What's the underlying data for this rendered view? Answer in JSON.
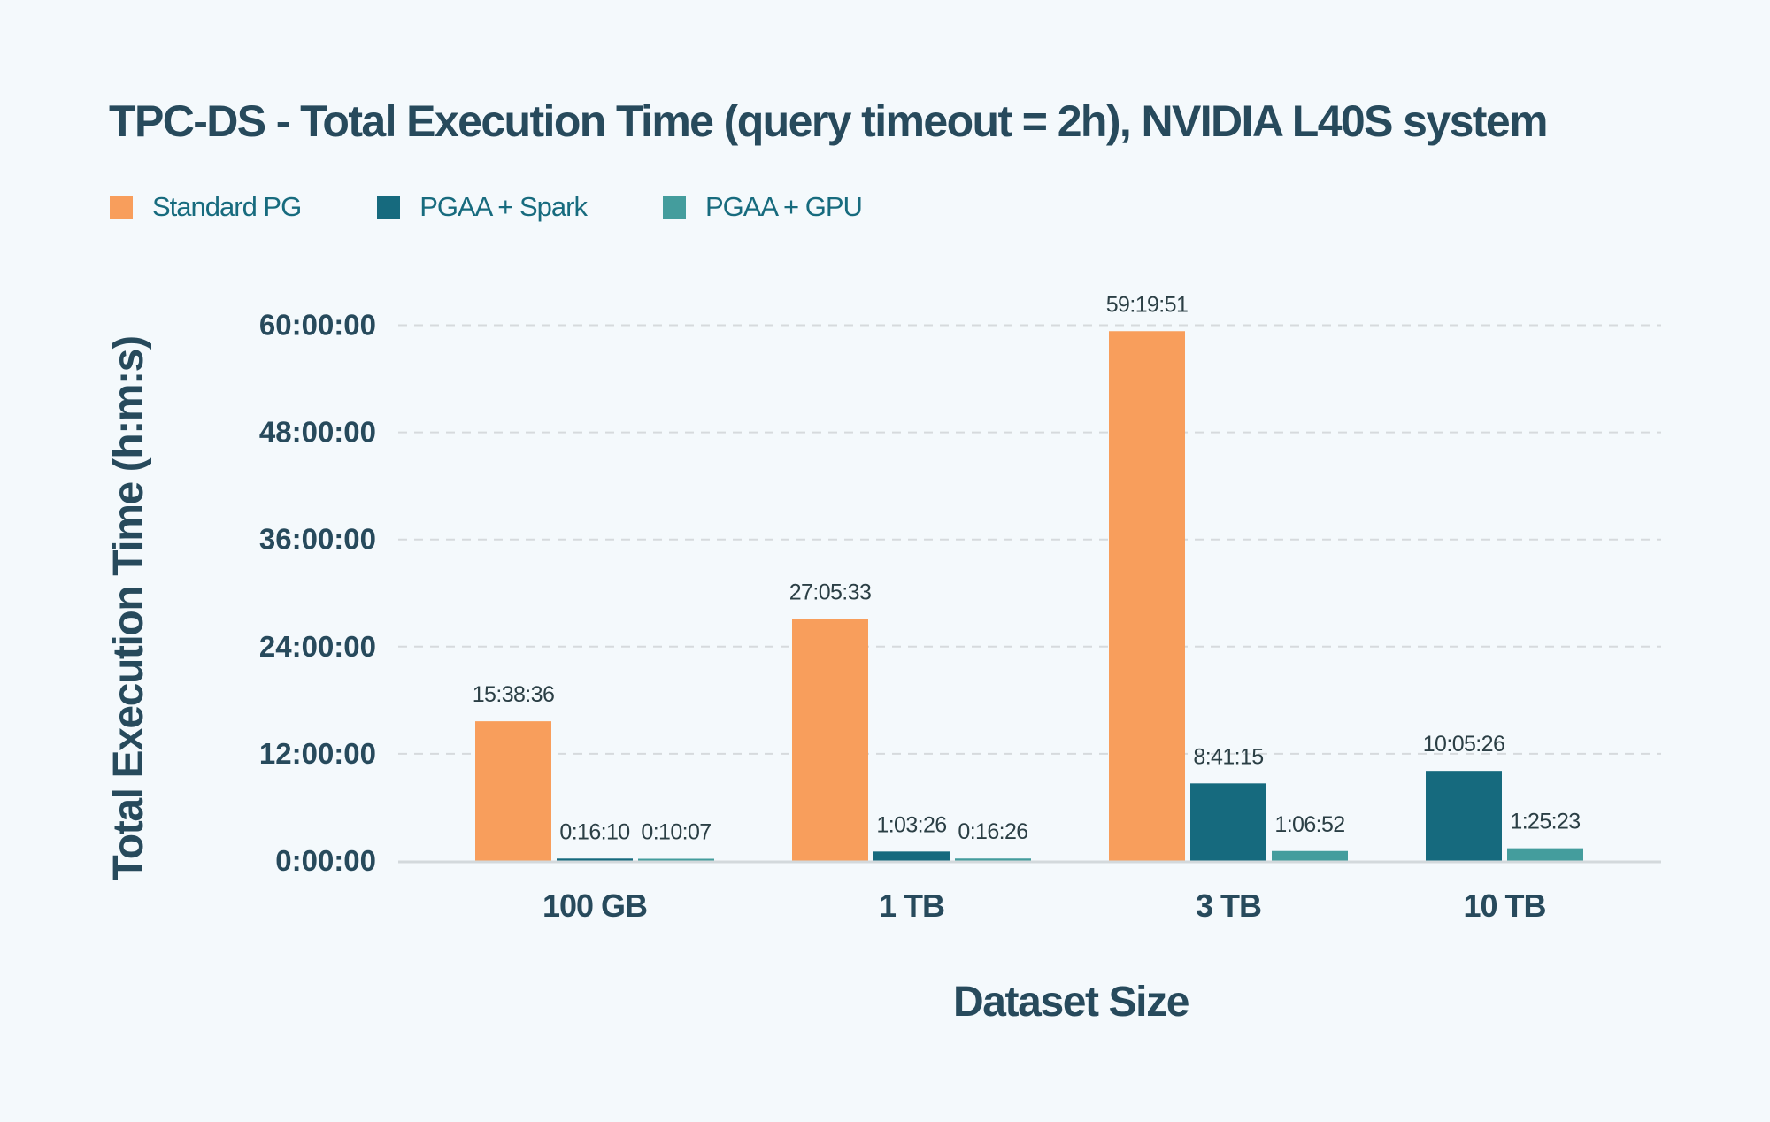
{
  "chart_data": {
    "type": "bar",
    "title": "TPC-DS - Total Execution Time (query timeout = 2h), NVIDIA L40S system",
    "xlabel": "Dataset Size",
    "ylabel": "Total Execution Time (h:m:s)",
    "categories": [
      "100 GB",
      "1 TB",
      "3 TB",
      "10 TB"
    ],
    "y_unit": "hours",
    "ylim": [
      0,
      60
    ],
    "y_ticks": [
      0,
      12,
      24,
      36,
      48,
      60
    ],
    "y_tick_labels": [
      "0:00:00",
      "12:00:00",
      "24:00:00",
      "36:00:00",
      "48:00:00",
      "60:00:00"
    ],
    "grid": true,
    "legend_position": "top-left",
    "series": [
      {
        "name": "Standard PG",
        "color": "#f89e5c",
        "values": [
          15.6433,
          27.0925,
          59.3308,
          null
        ],
        "labels": [
          "15:38:36",
          "27:05:33",
          "59:19:51",
          null
        ]
      },
      {
        "name": "PGAA + Spark",
        "color": "#166a7e",
        "values": [
          0.2694,
          1.0572,
          8.6875,
          10.0906
        ],
        "labels": [
          "0:16:10",
          "1:03:26",
          "8:41:15",
          "10:05:26"
        ]
      },
      {
        "name": "PGAA + GPU",
        "color": "#449d9d",
        "values": [
          0.1686,
          0.2739,
          1.1144,
          1.4231
        ],
        "labels": [
          "0:10:07",
          "0:16:26",
          "1:06:52",
          "1:25:23"
        ]
      }
    ]
  },
  "colors": {
    "background": "#f4f9fc",
    "text": "#274a5c",
    "legend_text": "#176b7e",
    "grid": "#d6dadd",
    "axis": "#d3d9dc"
  }
}
